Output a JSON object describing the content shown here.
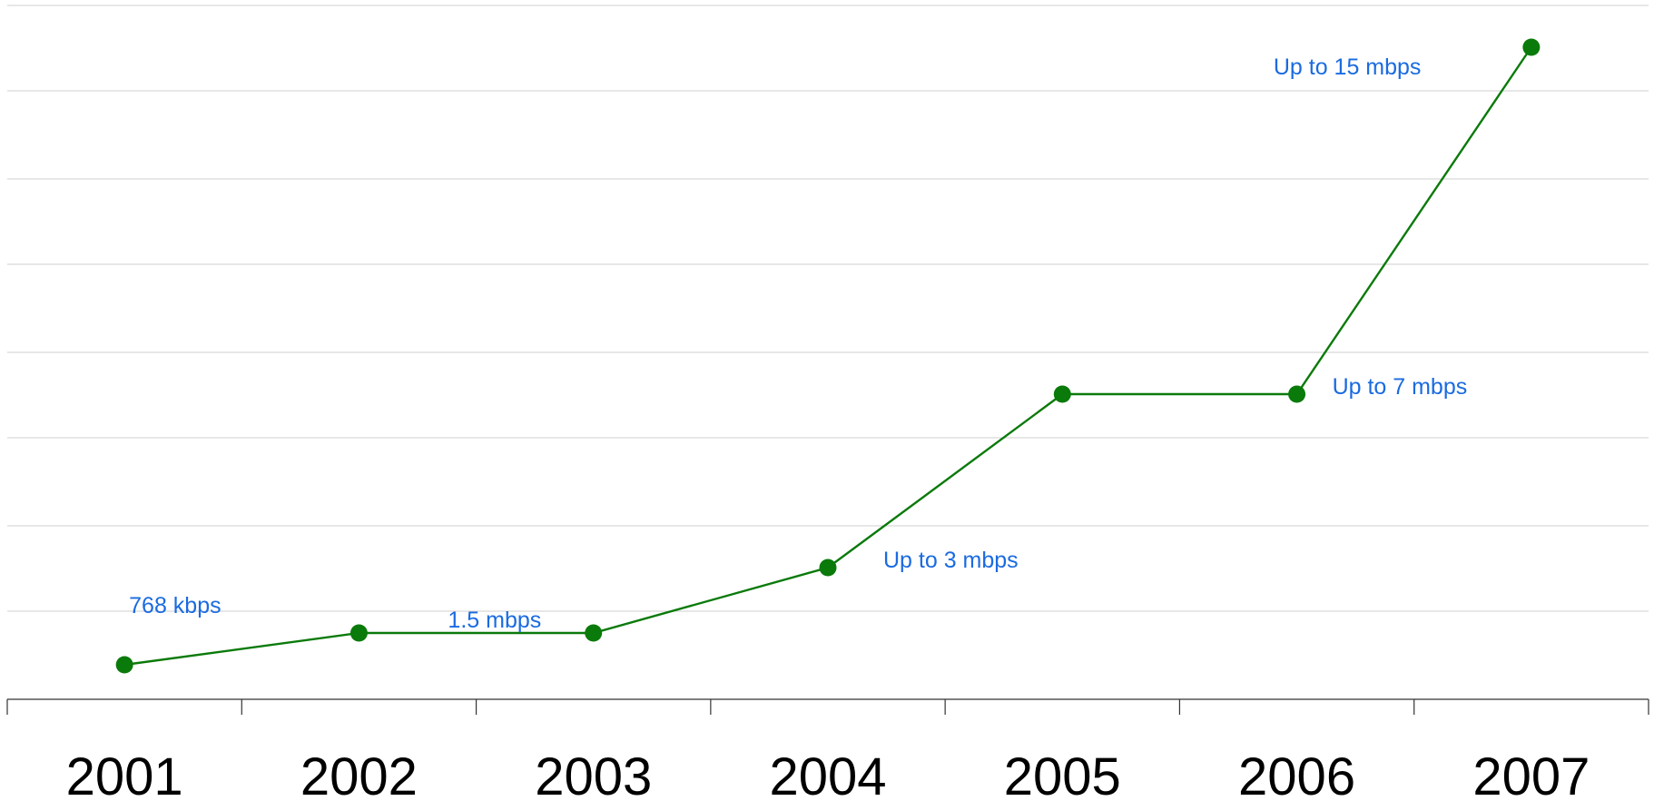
{
  "chart_data": {
    "type": "line",
    "title": "",
    "xlabel": "",
    "ylabel": "",
    "categories": [
      "2001",
      "2002",
      "2003",
      "2004",
      "2005",
      "2006",
      "2007"
    ],
    "series": [
      {
        "values": [
          0.768,
          1.5,
          1.5,
          3,
          7,
          7,
          15
        ]
      }
    ],
    "annotations": [
      "768 kbps",
      "1.5 mbps",
      "Up to 3 mbps",
      "Up to 7 mbps",
      "Up to 15 mbps"
    ],
    "grid": true,
    "y_axis_labels_shown": false
  },
  "colors": {
    "line": "#0a7a0a",
    "marker": "#0a7a0a",
    "annotation": "#1a6be0",
    "grid": "#cfcfcf",
    "axis": "#333333"
  }
}
